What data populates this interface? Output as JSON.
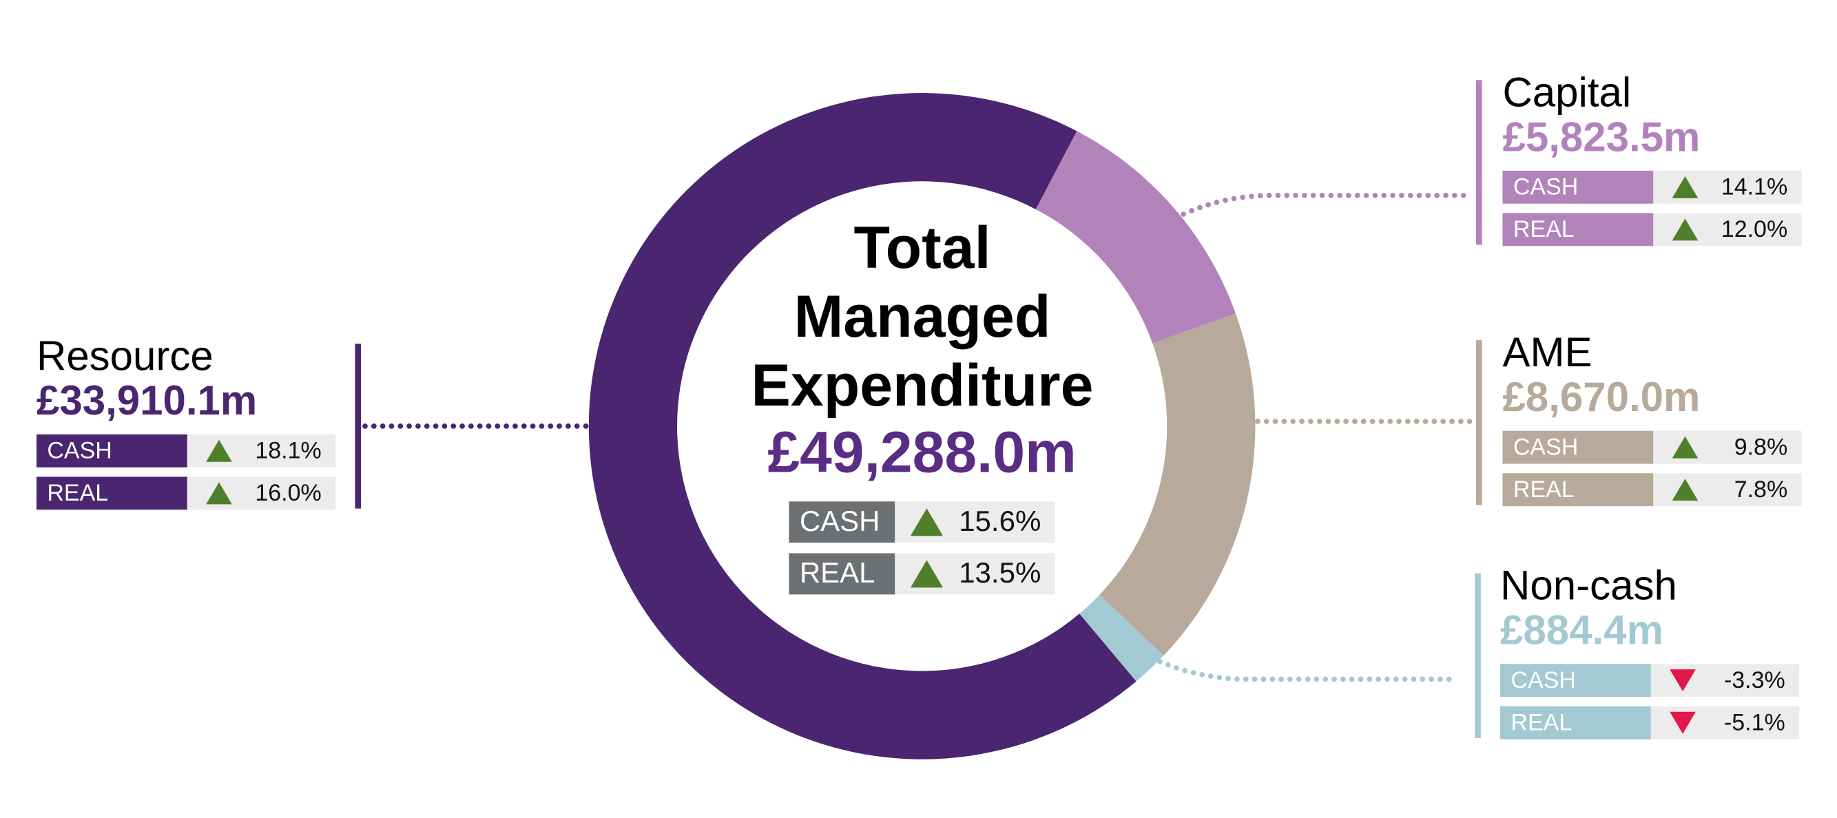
{
  "chart_data": {
    "type": "donut",
    "title": "Total Managed Expenditure",
    "total": "£49,288.0m",
    "total_changes": [
      {
        "name": "CASH",
        "value": 15.6,
        "label": "15.6%"
      },
      {
        "name": "REAL",
        "value": 13.5,
        "label": "13.5%"
      }
    ],
    "categories": [
      "Resource",
      "Capital",
      "AME",
      "Non-cash"
    ],
    "values": [
      33910.1,
      5823.5,
      8670.0,
      884.4
    ],
    "value_labels": [
      "£33,910.1m",
      "£5,823.5m",
      "£8,670.0m",
      "£884.4m"
    ],
    "colors": [
      "#4a2570",
      "#b283bb",
      "#b8a99a",
      "#a3c9d3"
    ],
    "changes": [
      [
        {
          "name": "CASH",
          "value": 18.1,
          "label": "18.1%"
        },
        {
          "name": "REAL",
          "value": 16.0,
          "label": "16.0%"
        }
      ],
      [
        {
          "name": "CASH",
          "value": 14.1,
          "label": "14.1%"
        },
        {
          "name": "REAL",
          "value": 12.0,
          "label": "12.0%"
        }
      ],
      [
        {
          "name": "CASH",
          "value": 9.8,
          "label": "9.8%"
        },
        {
          "name": "REAL",
          "value": 7.8,
          "label": "7.8%"
        }
      ],
      [
        {
          "name": "CASH",
          "value": -3.3,
          "label": "-3.3%"
        },
        {
          "name": "REAL",
          "value": -5.1,
          "label": "-5.1%"
        }
      ]
    ]
  }
}
